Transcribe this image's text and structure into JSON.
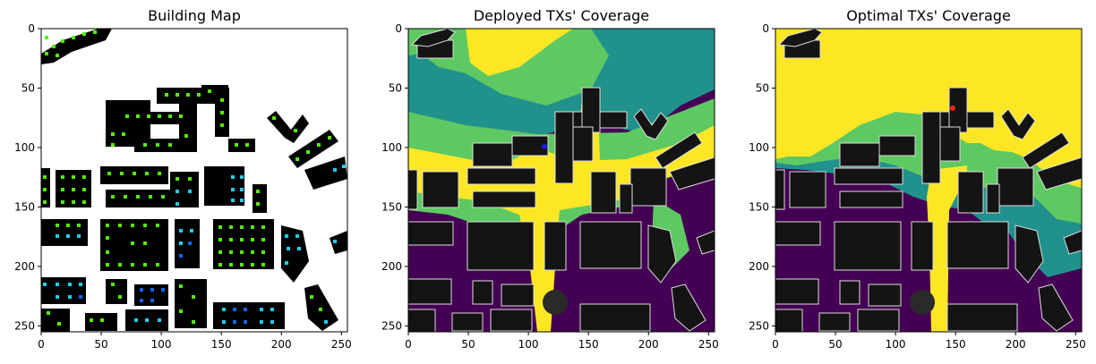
{
  "chart_data": [
    {
      "type": "heatmap",
      "title": "Building Map",
      "xlabel": "",
      "ylabel": "",
      "xlim": [
        0,
        255
      ],
      "ylim": [
        255,
        0
      ],
      "xticks": [
        0,
        50,
        100,
        150,
        200,
        250
      ],
      "yticks": [
        0,
        50,
        100,
        150,
        200,
        250
      ],
      "grid": false,
      "legend": "none",
      "colors": {
        "background": "#ffffff",
        "building": "#000000",
        "marker_green": "#55ee00",
        "marker_cyan": "#22ccee",
        "marker_blue": "#1166ee"
      }
    },
    {
      "type": "heatmap",
      "title": "Deployed TXs' Coverage",
      "xlabel": "",
      "ylabel": "",
      "xlim": [
        0,
        255
      ],
      "ylim": [
        255,
        0
      ],
      "xticks": [
        0,
        50,
        100,
        150,
        200,
        250
      ],
      "yticks": [
        0,
        50,
        100,
        150,
        200,
        250
      ],
      "grid": false,
      "legend": "none",
      "tx_point": {
        "x": 113,
        "y": 98,
        "color": "#1a1aff"
      },
      "colors": {
        "low": "#440154",
        "mid_low": "#21918c",
        "mid_high": "#5ec962",
        "high": "#fde725",
        "building": "#141414"
      }
    },
    {
      "type": "heatmap",
      "title": "Optimal TXs' Coverage",
      "xlabel": "",
      "ylabel": "",
      "xlim": [
        0,
        255
      ],
      "ylim": [
        255,
        0
      ],
      "xticks": [
        0,
        50,
        100,
        150,
        200,
        250
      ],
      "yticks": [
        0,
        50,
        100,
        150,
        200,
        250
      ],
      "grid": false,
      "legend": "none",
      "tx_point": {
        "x": 148,
        "y": 67,
        "color": "#ff2020"
      },
      "colors": {
        "low": "#440154",
        "mid_low": "#21918c",
        "mid_high": "#5ec962",
        "high": "#fde725",
        "building": "#141414"
      }
    }
  ]
}
